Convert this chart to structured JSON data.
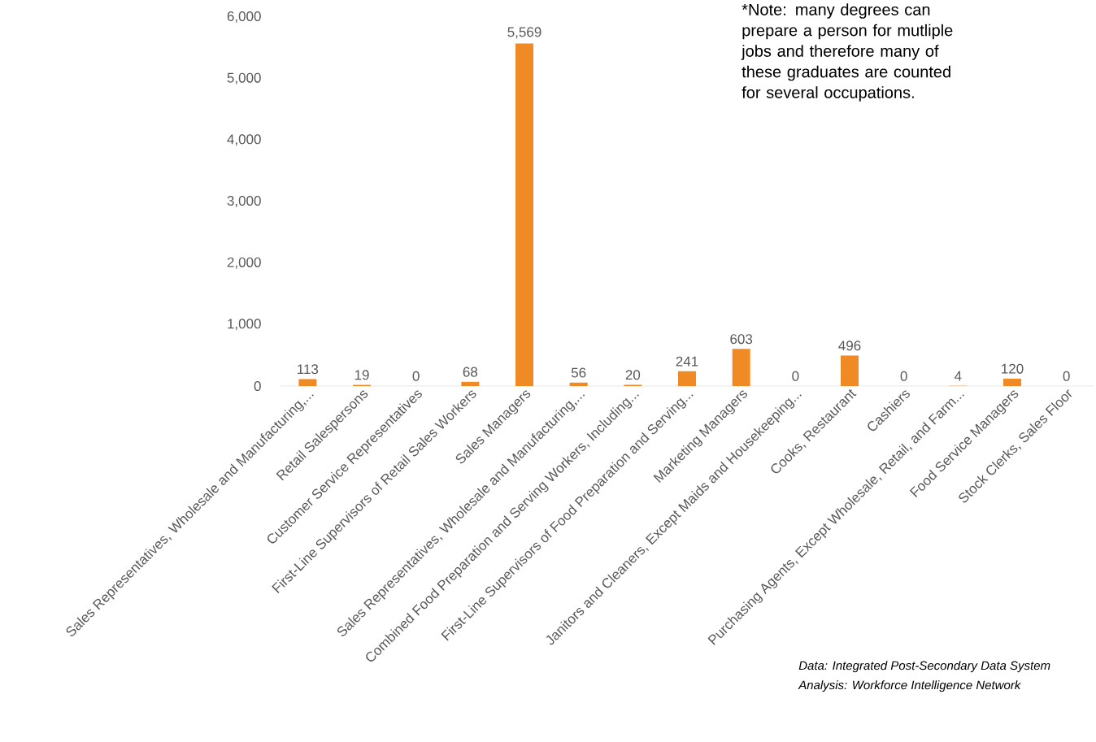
{
  "chart_data": {
    "type": "bar",
    "categories": [
      "Sales Representatives, Wholesale and Manufacturing,...",
      "Retail Salespersons",
      "Customer Service Representatives",
      "First-Line Supervisors of Retail Sales Workers",
      "Sales Managers",
      "Sales Representatives, Wholesale and Manufacturing,...",
      "Combined Food Preparation and Serving Workers, Including...",
      "First-Line Supervisors of Food Preparation and Serving...",
      "Marketing Managers",
      "Janitors and Cleaners, Except Maids and Housekeeping...",
      "Cooks, Restaurant",
      "Cashiers",
      "Purchasing Agents, Except Wholesale, Retail, and Farm...",
      "Food Service Managers",
      "Stock Clerks, Sales Floor"
    ],
    "values": [
      113,
      19,
      0,
      68,
      5569,
      56,
      20,
      241,
      603,
      0,
      496,
      0,
      4,
      120,
      0
    ],
    "value_labels": [
      "113",
      "19",
      "0",
      "68",
      "5,569",
      "56",
      "20",
      "241",
      "603",
      "0",
      "496",
      "0",
      "4",
      "120",
      "0"
    ],
    "color": "#f08a24",
    "ylim": [
      0,
      6000
    ],
    "yticks": [
      0,
      {
        "value": 1000,
        "label": "1,000"
      },
      {
        "value": 2000,
        "label": "2,000"
      },
      {
        "value": 3000,
        "label": "3,000"
      },
      {
        "value": 4000,
        "label": "4,000"
      },
      {
        "value": 5000,
        "label": "5,000"
      },
      {
        "value": 6000,
        "label": "6,000"
      }
    ],
    "annotations": [
      "*Note: many degrees can prepare a person for mutliple jobs and therefore many of these graduates are counted for several occupations.",
      "Data: Integrated Post-Secondary Data System",
      "Analysis: Workforce Intelligence Network"
    ]
  }
}
